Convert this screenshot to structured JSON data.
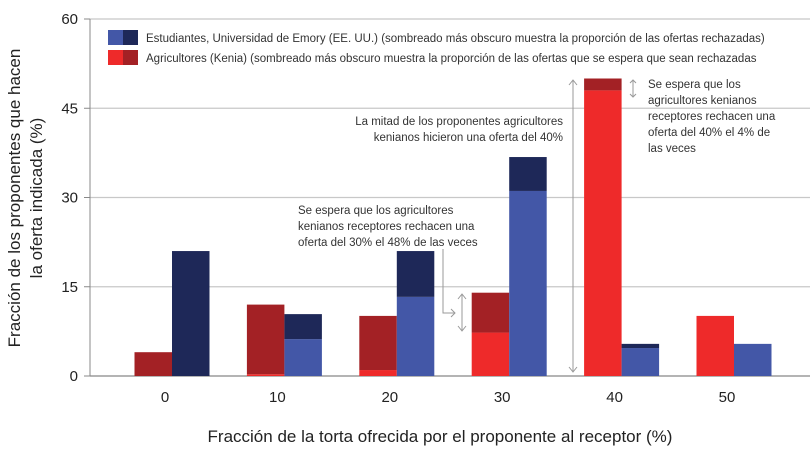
{
  "chart_data": {
    "type": "bar",
    "stacked_shading": true,
    "xlabel": "Fracción de la torta ofrecida por el proponente al receptor (%)",
    "ylabel": [
      "Fracción de los proponentes que hacen",
      "la oferta indicada (%)"
    ],
    "ylim": [
      0,
      60
    ],
    "yticks": [
      0,
      15,
      30,
      45,
      60
    ],
    "grid": true,
    "categories": [
      "0",
      "10",
      "20",
      "30",
      "40",
      "50"
    ],
    "legend_position": "top-left",
    "series": [
      {
        "name": "Agricultores (Kenia) (sombreado más obscuro muestra la proporción de las ofertas que se espera que sean rechazadas",
        "colors": {
          "light": "#ee2a2a",
          "dark": "#a32125"
        },
        "totals": [
          4,
          12,
          10.1,
          14,
          50,
          10.1
        ],
        "rejected": [
          4,
          11.7,
          9.1,
          6.7,
          2,
          0
        ]
      },
      {
        "name": "Estudiantes, Universidad de Emory (EE. UU.) (sombreado más obscuro muestra la proporción de las ofertas rechazadas)",
        "colors": {
          "light": "#4357a7",
          "dark": "#1e2858"
        },
        "totals": [
          21,
          10.4,
          21,
          36.8,
          5.4,
          5.4
        ],
        "rejected": [
          21,
          4.2,
          7.7,
          5.7,
          0.7,
          0
        ]
      }
    ],
    "annotations": [
      [
        "La mitad de los proponentes agricultores",
        "kenianos hicieron una oferta del 40%"
      ],
      [
        "Se espera que los",
        "agricultores kenianos",
        "receptores rechacen una",
        "oferta del 40% el 4% de",
        "las veces"
      ],
      [
        "Se espera que los agricultores",
        "kenianos receptores rechacen una",
        "oferta del 30% el 48% de las veces"
      ]
    ]
  }
}
